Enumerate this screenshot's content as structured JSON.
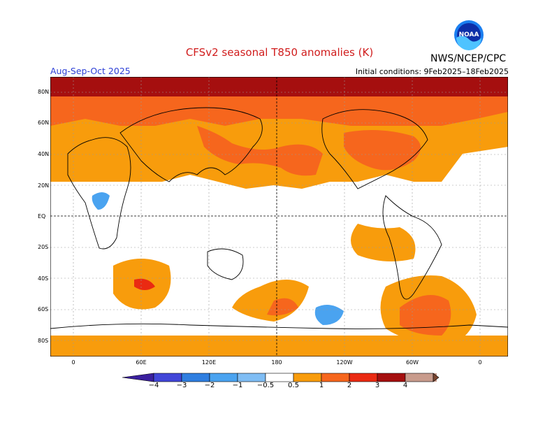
{
  "title": "CFSv2 seasonal T850 anomalies (K)",
  "season": "Aug-Sep-Oct 2025",
  "initial_conditions": "Initial conditions: 9Feb2025–18Feb2025",
  "agency": "NWS/NCEP/CPC",
  "logo_text": "NOAA",
  "lat_labels": [
    "80N",
    "60N",
    "40N",
    "20N",
    "EQ",
    "20S",
    "40S",
    "60S",
    "80S"
  ],
  "lon_labels": [
    "0",
    "60E",
    "120E",
    "180",
    "120W",
    "60W",
    "0"
  ],
  "colorbar": {
    "labels": [
      "−4",
      "−3",
      "−2",
      "−1",
      "−0.5",
      "0.5",
      "1",
      "2",
      "3",
      "4"
    ],
    "colors": [
      "#3a1f9e",
      "#4146d8",
      "#2f7ee0",
      "#4aa3f0",
      "#7fbdf4",
      "#ffffff",
      "#f89c0c",
      "#f6661d",
      "#ea2a12",
      "#a50f0f",
      "#c89b8c",
      "#7a4630"
    ]
  }
}
